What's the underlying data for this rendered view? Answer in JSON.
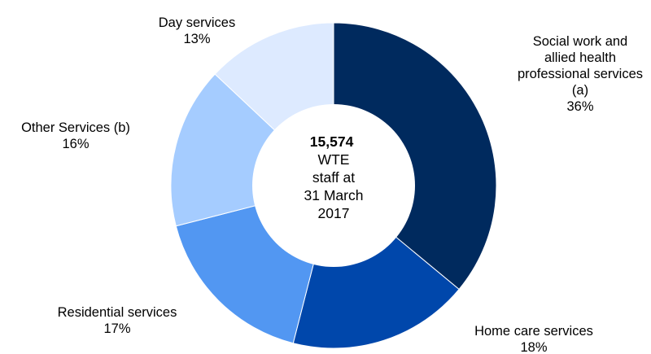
{
  "chart_data": {
    "type": "pie",
    "donut": true,
    "categories": [
      "Social work and allied health professional services (a)",
      "Home care services",
      "Residential services",
      "Other Services (b)",
      "Day services"
    ],
    "values": [
      36,
      18,
      17,
      16,
      13
    ],
    "unit": "%",
    "value_labels": [
      "36%",
      "18%",
      "17%",
      "16%",
      "13%"
    ],
    "label_lines": [
      [
        "Social work and",
        "allied health",
        "professional services",
        "(a)",
        "36%"
      ],
      [
        "Home care services",
        "18%"
      ],
      [
        "Residential services",
        "17%"
      ],
      [
        "Other Services (b)",
        "16%"
      ],
      [
        "Day services",
        "13%"
      ]
    ],
    "colors": [
      "#002a5e",
      "#0047ab",
      "#5297f2",
      "#a5ccff",
      "#ddeaff"
    ],
    "center_text": {
      "bold_line": "15,574",
      "lines": [
        "WTE",
        "staff at",
        "31 March",
        "2017"
      ]
    },
    "legend": "none",
    "start_angle": "top",
    "direction": "clockwise"
  }
}
